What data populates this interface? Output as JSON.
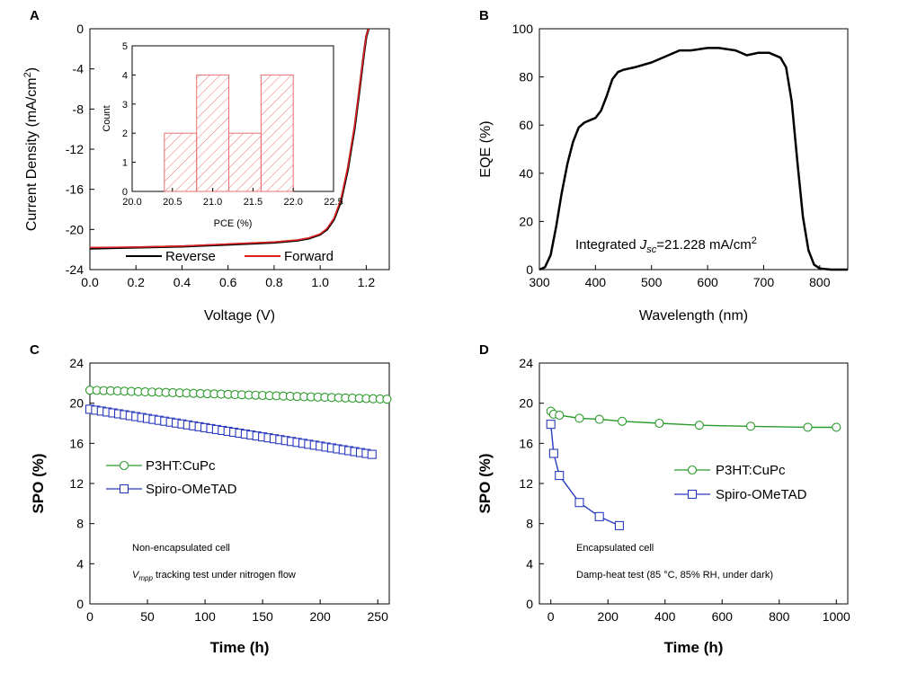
{
  "chart_data": [
    {
      "panel": "A",
      "type": "line",
      "xlabel": "Voltage (V)",
      "ylabel": "Current Density (mA/cm2)",
      "ylabel_parts": [
        "Current Density (mA/cm",
        "2",
        ")"
      ],
      "xlim": [
        0.0,
        1.3
      ],
      "ylim": [
        -24,
        0
      ],
      "xticks": [
        "0.0",
        "0.2",
        "0.4",
        "0.6",
        "0.8",
        "1.0",
        "1.2"
      ],
      "yticks": [
        "0",
        "-4",
        "-8",
        "-12",
        "-16",
        "-20",
        "-24"
      ],
      "legend": [
        "Reverse",
        "Forward"
      ],
      "series": [
        {
          "name": "Reverse",
          "color": "#000000",
          "x": [
            0.0,
            0.2,
            0.4,
            0.6,
            0.8,
            0.9,
            0.95,
            1.0,
            1.03,
            1.06,
            1.09,
            1.12,
            1.15,
            1.17,
            1.19,
            1.2,
            1.21
          ],
          "y": [
            -21.9,
            -21.8,
            -21.7,
            -21.5,
            -21.3,
            -21.1,
            -20.9,
            -20.5,
            -20.0,
            -19.0,
            -17.2,
            -14.0,
            -9.8,
            -6.2,
            -2.5,
            -0.8,
            0.0
          ]
        },
        {
          "name": "Forward",
          "color": "#e02020",
          "x": [
            0.0,
            0.2,
            0.4,
            0.6,
            0.8,
            0.9,
            0.95,
            1.0,
            1.03,
            1.06,
            1.09,
            1.12,
            1.15,
            1.17,
            1.19,
            1.2,
            1.21
          ],
          "y": [
            -21.8,
            -21.75,
            -21.65,
            -21.45,
            -21.25,
            -21.05,
            -20.85,
            -20.45,
            -19.9,
            -18.9,
            -17.0,
            -13.8,
            -9.6,
            -6.0,
            -2.4,
            -0.7,
            0.0
          ]
        }
      ],
      "inset": {
        "type": "histogram",
        "xlabel": "PCE (%)",
        "ylabel": "Count",
        "xlim": [
          20.0,
          22.5
        ],
        "ylim": [
          0,
          5
        ],
        "xticks": [
          "20.0",
          "20.5",
          "21.0",
          "21.5",
          "22.0",
          "22.5"
        ],
        "yticks": [
          "0",
          "1",
          "2",
          "3",
          "4",
          "5"
        ],
        "bins": [
          [
            20.4,
            20.8
          ],
          [
            20.8,
            21.2
          ],
          [
            21.2,
            21.6
          ],
          [
            21.6,
            22.0
          ]
        ],
        "values": [
          2,
          4,
          2,
          4
        ],
        "color": "#e87070"
      }
    },
    {
      "panel": "B",
      "type": "line",
      "xlabel": "Wavelength (nm)",
      "ylabel": "EQE (%)",
      "xlim": [
        300,
        850
      ],
      "ylim": [
        0,
        100
      ],
      "xticks": [
        "300",
        "400",
        "500",
        "600",
        "700",
        "800"
      ],
      "yticks": [
        "0",
        "20",
        "40",
        "60",
        "80",
        "100"
      ],
      "annotation_parts": [
        "Integrated ",
        "J",
        "sc",
        "=21.228 mA/cm",
        "2"
      ],
      "series": [
        {
          "name": "EQE",
          "color": "#000000",
          "x": [
            300,
            310,
            320,
            330,
            340,
            350,
            360,
            370,
            380,
            390,
            400,
            410,
            420,
            430,
            440,
            450,
            470,
            500,
            530,
            550,
            570,
            600,
            620,
            650,
            670,
            690,
            710,
            730,
            740,
            750,
            760,
            770,
            780,
            790,
            800,
            820,
            850
          ],
          "y": [
            0,
            1,
            6,
            18,
            32,
            44,
            53,
            59,
            61,
            62,
            63,
            66,
            72,
            79,
            82,
            83,
            84,
            86,
            89,
            91,
            91,
            92,
            92,
            91,
            89,
            90,
            90,
            88,
            84,
            70,
            45,
            22,
            8,
            2,
            0.5,
            0,
            0
          ]
        }
      ]
    },
    {
      "panel": "C",
      "type": "line",
      "xlabel": "Time (h)",
      "ylabel": "SPO (%)",
      "xlim": [
        0,
        260
      ],
      "ylim": [
        0,
        24
      ],
      "xticks": [
        "0",
        "50",
        "100",
        "150",
        "200",
        "250"
      ],
      "yticks": [
        "0",
        "4",
        "8",
        "12",
        "16",
        "20",
        "24"
      ],
      "legend": [
        "P3HT:CuPc",
        "Spiro-OMeTAD"
      ],
      "notes": [
        "Non-encapsulated cell",
        "tracking test under nitrogen flow"
      ],
      "note_vmpp": [
        "V",
        "mpp"
      ],
      "series": [
        {
          "name": "P3HT:CuPc",
          "color": "#2a9a2a",
          "marker": "circle",
          "x_start": 0,
          "x_step": 6,
          "count": 44,
          "y_start": 21.3,
          "y_end": 20.4
        },
        {
          "name": "Spiro-OMeTAD",
          "color": "#2b3bbf",
          "marker": "square",
          "x_start": 0,
          "x_step": 5,
          "count": 50,
          "y_start": 19.4,
          "y_end": 14.9
        }
      ]
    },
    {
      "panel": "D",
      "type": "line",
      "xlabel": "Time (h)",
      "ylabel": "SPO (%)",
      "xlim": [
        -40,
        1040
      ],
      "ylim": [
        0,
        24
      ],
      "xticks": [
        "0",
        "200",
        "400",
        "600",
        "800",
        "1000"
      ],
      "yticks": [
        "0",
        "4",
        "8",
        "12",
        "16",
        "20",
        "24"
      ],
      "legend": [
        "P3HT:CuPc",
        "Spiro-OMeTAD"
      ],
      "notes": [
        "Encapsulated cell",
        "Damp-heat test (85 °C, 85% RH, under dark)"
      ],
      "series": [
        {
          "name": "P3HT:CuPc",
          "color": "#2a9a2a",
          "marker": "circle",
          "x": [
            0,
            10,
            30,
            100,
            170,
            250,
            380,
            520,
            700,
            900,
            1000
          ],
          "y": [
            19.2,
            18.9,
            18.8,
            18.5,
            18.4,
            18.2,
            18.0,
            17.8,
            17.7,
            17.6,
            17.6
          ]
        },
        {
          "name": "Spiro-OMeTAD",
          "color": "#2b3bbf",
          "marker": "square",
          "x": [
            0,
            10,
            30,
            100,
            170,
            240
          ],
          "y": [
            17.9,
            15.0,
            12.8,
            10.1,
            8.7,
            7.8
          ]
        }
      ]
    }
  ]
}
